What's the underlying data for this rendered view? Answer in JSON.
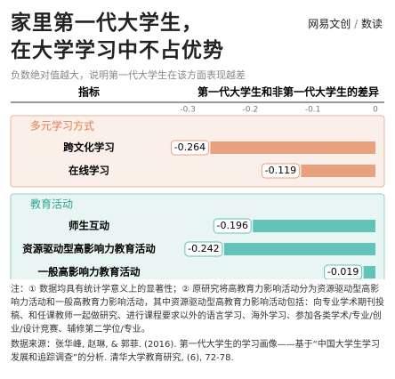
{
  "chart_data": {
    "type": "bar",
    "title": [
      "家里第一代大学生，",
      "在大学学习中不占优势"
    ],
    "subtitle": "负数绝对值越大，说明第一代大学生在该方面表现越差",
    "logo": [
      "网易文创",
      "数读"
    ],
    "category_header": "指标",
    "value_header": "第一代大学生和非第一代大学生的差异",
    "xlim": [
      -0.34,
      0
    ],
    "xticks": [
      -0.3,
      -0.2,
      -0.1,
      0
    ],
    "groups": [
      {
        "name": "多元学习方式",
        "color": "#e9a27e",
        "panel": "#fbefe9",
        "border": "#eab59a",
        "head": "#e07e4e",
        "categories": [
          "跨文化学习",
          "在线学习"
        ],
        "values": [
          -0.264,
          -0.119
        ]
      },
      {
        "name": "教育活动",
        "color": "#62c3b8",
        "panel": "#e8f5f3",
        "border": "#8fd0c7",
        "head": "#2aa597",
        "categories": [
          "师生互动",
          "资源驱动型高影响力教育活动",
          "一般高影响力教育活动"
        ],
        "values": [
          -0.196,
          -0.242,
          -0.019
        ]
      }
    ],
    "notes": "注：① 数据均具有统计学意义上的显著性；② 原研究将高教育力影响活动分为资源驱动型高影响力活动和一般高教育力影响活动，其中资源驱动型高教育力影响活动包括：向专业学术期刊投稿、和任课教师一起做研究、进行课程要求以外的语言学习、海外学习、参加各类学术/专业/创业/设计竞赛、辅修第二学位/专业。",
    "source": "数据来源：张华峰, 赵琳, & 郭菲. (2016). 第一代大学生的学习画像——基于“中国大学生学习发展和追踪调查”的分析. 清华大学教育研究, (6), 72-78."
  }
}
